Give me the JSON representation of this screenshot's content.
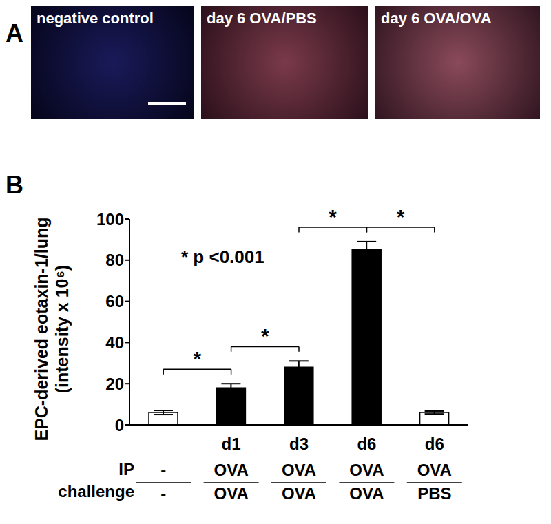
{
  "panel_labels": [
    "A",
    "B"
  ],
  "images": [
    {
      "label": "negative control"
    },
    {
      "label": "day 6 OVA/PBS"
    },
    {
      "label": "day 6 OVA/OVA"
    }
  ],
  "chart_data": {
    "type": "bar",
    "y_label": [
      "EPC-derived eotaxin-1/lung",
      "(intensity x 10⁶)"
    ],
    "annotation": "* p <0.001",
    "categories": [
      null,
      "d1",
      "d3",
      "d6",
      "d6"
    ],
    "ip": [
      "-",
      "OVA",
      "OVA",
      "OVA",
      "OVA"
    ],
    "challenge": [
      "-",
      "OVA",
      "OVA",
      "OVA",
      "PBS"
    ],
    "row_labels": {
      "ip": "IP",
      "challenge": "challenge"
    },
    "values": [
      6,
      18,
      28,
      85,
      6
    ],
    "errors": [
      1,
      2,
      3,
      4,
      0.7
    ],
    "colors": [
      "#ffffff",
      "#000000",
      "#000000",
      "#000000",
      "#ffffff"
    ],
    "ylim": [
      0,
      100
    ],
    "yticks": [
      0,
      20,
      40,
      60,
      80,
      100
    ],
    "significance": [
      {
        "from": 0,
        "to": 1,
        "label": "*"
      },
      {
        "from": 1,
        "to": 2,
        "label": "*"
      },
      {
        "from": 2,
        "to": 3,
        "label": "*"
      },
      {
        "from": 3,
        "to": 4,
        "label": "*"
      }
    ]
  }
}
